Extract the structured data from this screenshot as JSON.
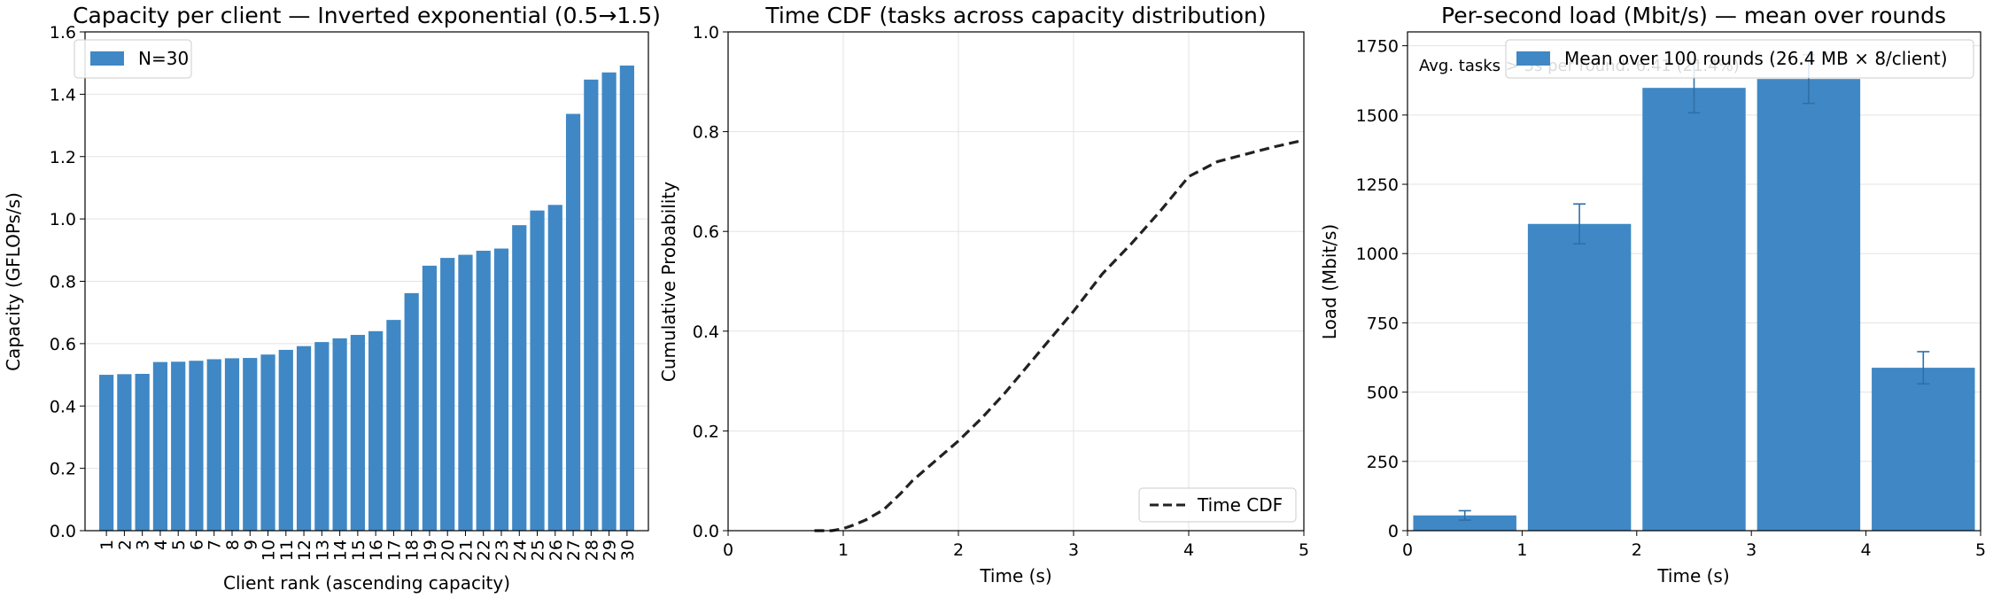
{
  "chart_data": [
    {
      "type": "bar",
      "title": "Capacity per client — Inverted exponential (0.5→1.5)",
      "xlabel": "Client rank (ascending capacity)",
      "ylabel": "Capacity (GFLOPs/s)",
      "ylim": [
        0,
        1.6
      ],
      "yticks": [
        "0.0",
        "0.2",
        "0.4",
        "0.6",
        "0.8",
        "1.0",
        "1.2",
        "1.4",
        "1.6"
      ],
      "grid": "y",
      "legend": {
        "position": "top-left",
        "entries": [
          "N=30"
        ]
      },
      "color": "#3f88c5",
      "categories": [
        "1",
        "2",
        "3",
        "4",
        "5",
        "6",
        "7",
        "8",
        "9",
        "10",
        "11",
        "12",
        "13",
        "14",
        "15",
        "16",
        "17",
        "18",
        "19",
        "20",
        "21",
        "22",
        "23",
        "24",
        "25",
        "26",
        "27",
        "28",
        "29",
        "30"
      ],
      "values": [
        0.5,
        0.502,
        0.503,
        0.541,
        0.542,
        0.545,
        0.55,
        0.553,
        0.554,
        0.565,
        0.58,
        0.592,
        0.605,
        0.617,
        0.628,
        0.64,
        0.676,
        0.762,
        0.85,
        0.875,
        0.885,
        0.898,
        0.905,
        0.98,
        1.027,
        1.045,
        1.337,
        1.447,
        1.47,
        1.492
      ]
    },
    {
      "type": "line",
      "title": "Time CDF (tasks across capacity distribution)",
      "xlabel": "Time (s)",
      "ylabel": "Cumulative Probability",
      "xlim": [
        0,
        5
      ],
      "ylim": [
        0,
        1.0
      ],
      "xticks": [
        "0",
        "1",
        "2",
        "3",
        "4",
        "5"
      ],
      "yticks": [
        "0.0",
        "0.2",
        "0.4",
        "0.6",
        "0.8",
        "1.0"
      ],
      "grid": "both",
      "legend": {
        "position": "bottom-right",
        "entries": [
          "Time CDF"
        ]
      },
      "series": [
        {
          "name": "Time CDF",
          "color": "#222222",
          "style": "dashed",
          "x": [
            0.75,
            0.9,
            1.0,
            1.1,
            1.2,
            1.35,
            1.5,
            1.6,
            1.8,
            2.0,
            2.2,
            2.4,
            2.6,
            2.8,
            3.0,
            3.25,
            3.5,
            3.75,
            4.0,
            4.25,
            4.5,
            4.75,
            5.0
          ],
          "y": [
            0.0,
            0.0,
            0.004,
            0.012,
            0.022,
            0.042,
            0.075,
            0.1,
            0.14,
            0.18,
            0.225,
            0.275,
            0.33,
            0.385,
            0.44,
            0.515,
            0.575,
            0.64,
            0.71,
            0.74,
            0.755,
            0.77,
            0.783
          ]
        }
      ]
    },
    {
      "type": "bar",
      "title": "Per-second load (Mbit/s) — mean over rounds",
      "xlabel": "Time (s)",
      "ylabel": "Load (Mbit/s)",
      "xlim": [
        0,
        5
      ],
      "ylim": [
        0,
        1800
      ],
      "xticks": [
        "0",
        "1",
        "2",
        "3",
        "4",
        "5"
      ],
      "yticks": [
        "0",
        "250",
        "500",
        "750",
        "1000",
        "1250",
        "1500",
        "1750"
      ],
      "grid": "y",
      "legend": {
        "position": "top-right",
        "entries": [
          "Mean over 100 rounds (26.4 MB × 8/client)"
        ]
      },
      "annotation": "Avg. tasks > 5s per round: 6.41 (21.4%)",
      "color": "#3f88c5",
      "bars": [
        {
          "x0": 0,
          "x1": 1,
          "value": 55,
          "err": 17
        },
        {
          "x0": 1,
          "x1": 2,
          "value": 1107,
          "err": 72
        },
        {
          "x0": 2,
          "x1": 3,
          "value": 1598,
          "err": 90
        },
        {
          "x0": 3,
          "x1": 4,
          "value": 1630,
          "err": 88
        },
        {
          "x0": 4,
          "x1": 5,
          "value": 588,
          "err": 58
        }
      ]
    }
  ]
}
